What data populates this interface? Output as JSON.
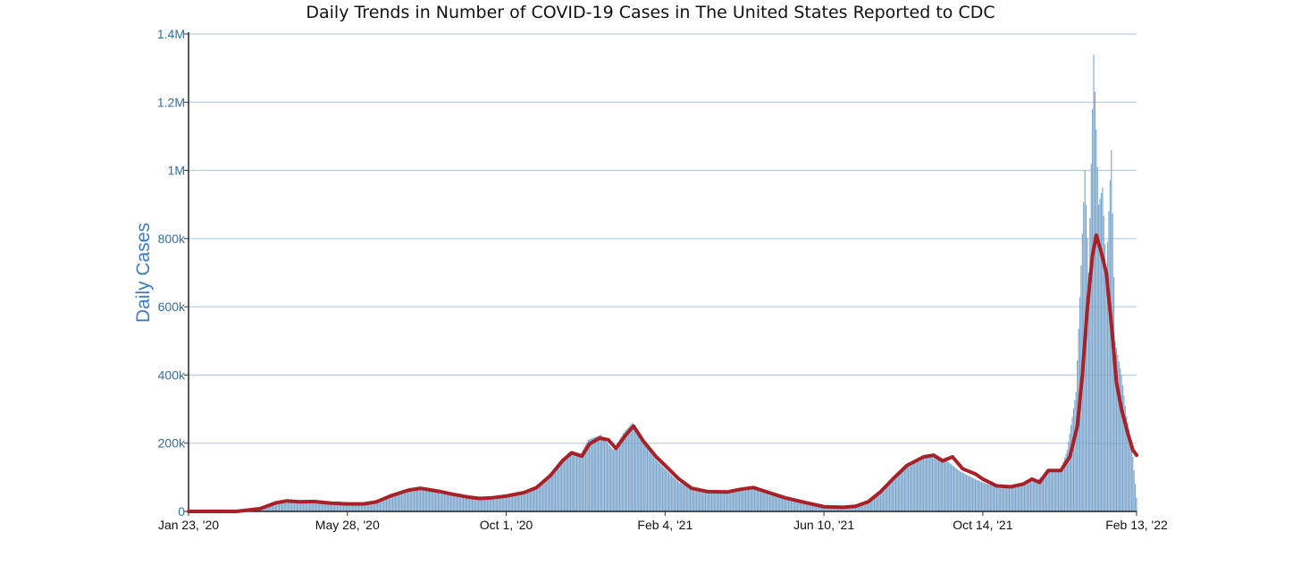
{
  "chart_data": {
    "type": "bar",
    "title": "Daily Trends in Number of COVID-19 Cases in The United States Reported to CDC",
    "xlabel": "",
    "ylabel": "Daily Cases",
    "ylim": [
      0,
      1400000
    ],
    "x_range": [
      "2020-01-23",
      "2022-02-13"
    ],
    "y_ticks": [
      {
        "value": 0,
        "label": "0"
      },
      {
        "value": 200000,
        "label": "200k"
      },
      {
        "value": 400000,
        "label": "400k"
      },
      {
        "value": 600000,
        "label": "600k"
      },
      {
        "value": 800000,
        "label": "800k"
      },
      {
        "value": 1000000,
        "label": "1M"
      },
      {
        "value": 1200000,
        "label": "1.2M"
      },
      {
        "value": 1400000,
        "label": "1.4M"
      }
    ],
    "x_ticks": [
      {
        "date": "2020-01-23",
        "label": "Jan 23, '20"
      },
      {
        "date": "2020-05-28",
        "label": "May 28, '20"
      },
      {
        "date": "2020-10-01",
        "label": "Oct 1, '20"
      },
      {
        "date": "2021-02-04",
        "label": "Feb 4, '21"
      },
      {
        "date": "2021-06-10",
        "label": "Jun 10, '21"
      },
      {
        "date": "2021-10-14",
        "label": "Oct 14, '21"
      },
      {
        "date": "2022-02-13",
        "label": "Feb 13, '22"
      }
    ],
    "grid": true,
    "legend": "none",
    "colors": {
      "bars": "#7ba6cc",
      "average_line": "#a82028",
      "grid": "#a9c6de",
      "ytick_text": "#2f6ea6",
      "ylabel_text": "#3f7bbf"
    },
    "series": [
      {
        "type": "bar",
        "description": "daily reported cases (approximate weekly values)",
        "points": [
          [
            "2020-01-23",
            0
          ],
          [
            "2020-02-20",
            0
          ],
          [
            "2020-03-10",
            1000
          ],
          [
            "2020-03-20",
            12000
          ],
          [
            "2020-04-01",
            27000
          ],
          [
            "2020-04-10",
            33000
          ],
          [
            "2020-04-20",
            28000
          ],
          [
            "2020-05-01",
            30000
          ],
          [
            "2020-05-15",
            25000
          ],
          [
            "2020-05-28",
            22000
          ],
          [
            "2020-06-10",
            22000
          ],
          [
            "2020-06-20",
            30000
          ],
          [
            "2020-07-01",
            45000
          ],
          [
            "2020-07-10",
            60000
          ],
          [
            "2020-07-20",
            68000
          ],
          [
            "2020-08-01",
            62000
          ],
          [
            "2020-08-10",
            55000
          ],
          [
            "2020-08-20",
            45000
          ],
          [
            "2020-09-01",
            40000
          ],
          [
            "2020-09-10",
            35000
          ],
          [
            "2020-09-20",
            42000
          ],
          [
            "2020-10-01",
            44000
          ],
          [
            "2020-10-10",
            52000
          ],
          [
            "2020-10-20",
            62000
          ],
          [
            "2020-11-01",
            85000
          ],
          [
            "2020-11-10",
            130000
          ],
          [
            "2020-11-20",
            175000
          ],
          [
            "2020-11-28",
            160000
          ],
          [
            "2020-12-05",
            210000
          ],
          [
            "2020-12-15",
            225000
          ],
          [
            "2020-12-25",
            180000
          ],
          [
            "2021-01-02",
            230000
          ],
          [
            "2021-01-09",
            260000
          ],
          [
            "2021-01-18",
            200000
          ],
          [
            "2021-01-28",
            150000
          ],
          [
            "2021-02-04",
            125000
          ],
          [
            "2021-02-15",
            85000
          ],
          [
            "2021-02-25",
            68000
          ],
          [
            "2021-03-10",
            58000
          ],
          [
            "2021-03-25",
            62000
          ],
          [
            "2021-04-05",
            68000
          ],
          [
            "2021-04-15",
            72000
          ],
          [
            "2021-04-25",
            58000
          ],
          [
            "2021-05-10",
            38000
          ],
          [
            "2021-05-25",
            25000
          ],
          [
            "2021-06-10",
            13000
          ],
          [
            "2021-06-25",
            11000
          ],
          [
            "2021-07-05",
            14000
          ],
          [
            "2021-07-15",
            30000
          ],
          [
            "2021-07-25",
            60000
          ],
          [
            "2021-08-05",
            105000
          ],
          [
            "2021-08-15",
            140000
          ],
          [
            "2021-08-28",
            160000
          ],
          [
            "2021-09-08",
            165000
          ],
          [
            "2021-09-15",
            150000
          ],
          [
            "2021-09-25",
            120000
          ],
          [
            "2021-10-05",
            100000
          ],
          [
            "2021-10-14",
            85000
          ],
          [
            "2021-10-25",
            72000
          ],
          [
            "2021-11-05",
            72000
          ],
          [
            "2021-11-15",
            85000
          ],
          [
            "2021-11-25",
            90000
          ],
          [
            "2021-12-05",
            115000
          ],
          [
            "2021-12-15",
            125000
          ],
          [
            "2021-12-20",
            180000
          ],
          [
            "2021-12-27",
            350000
          ],
          [
            "2022-01-03",
            1000000
          ],
          [
            "2022-01-06",
            700000
          ],
          [
            "2022-01-10",
            1340000
          ],
          [
            "2022-01-14",
            900000
          ],
          [
            "2022-01-17",
            950000
          ],
          [
            "2022-01-20",
            700000
          ],
          [
            "2022-01-24",
            1060000
          ],
          [
            "2022-01-27",
            500000
          ],
          [
            "2022-02-01",
            400000
          ],
          [
            "2022-02-05",
            280000
          ],
          [
            "2022-02-09",
            200000
          ],
          [
            "2022-02-13",
            40000
          ]
        ]
      },
      {
        "type": "line",
        "description": "7-day moving average",
        "points": [
          [
            "2020-01-23",
            0
          ],
          [
            "2020-03-01",
            0
          ],
          [
            "2020-03-20",
            8000
          ],
          [
            "2020-04-01",
            25000
          ],
          [
            "2020-04-10",
            31000
          ],
          [
            "2020-04-20",
            28000
          ],
          [
            "2020-05-01",
            29000
          ],
          [
            "2020-05-15",
            24000
          ],
          [
            "2020-05-28",
            22000
          ],
          [
            "2020-06-10",
            22000
          ],
          [
            "2020-06-20",
            28000
          ],
          [
            "2020-07-01",
            45000
          ],
          [
            "2020-07-15",
            62000
          ],
          [
            "2020-07-25",
            68000
          ],
          [
            "2020-08-10",
            58000
          ],
          [
            "2020-08-20",
            50000
          ],
          [
            "2020-09-01",
            42000
          ],
          [
            "2020-09-10",
            38000
          ],
          [
            "2020-09-20",
            40000
          ],
          [
            "2020-10-01",
            45000
          ],
          [
            "2020-10-15",
            55000
          ],
          [
            "2020-10-25",
            70000
          ],
          [
            "2020-11-05",
            105000
          ],
          [
            "2020-11-15",
            150000
          ],
          [
            "2020-11-22",
            172000
          ],
          [
            "2020-11-30",
            162000
          ],
          [
            "2020-12-06",
            198000
          ],
          [
            "2020-12-14",
            215000
          ],
          [
            "2020-12-21",
            210000
          ],
          [
            "2020-12-27",
            185000
          ],
          [
            "2021-01-04",
            225000
          ],
          [
            "2021-01-10",
            250000
          ],
          [
            "2021-01-18",
            205000
          ],
          [
            "2021-01-28",
            160000
          ],
          [
            "2021-02-04",
            135000
          ],
          [
            "2021-02-15",
            95000
          ],
          [
            "2021-02-25",
            68000
          ],
          [
            "2021-03-10",
            58000
          ],
          [
            "2021-03-25",
            57000
          ],
          [
            "2021-04-05",
            65000
          ],
          [
            "2021-04-15",
            70000
          ],
          [
            "2021-04-25",
            58000
          ],
          [
            "2021-05-10",
            40000
          ],
          [
            "2021-05-25",
            27000
          ],
          [
            "2021-06-10",
            14000
          ],
          [
            "2021-06-25",
            12000
          ],
          [
            "2021-07-05",
            15000
          ],
          [
            "2021-07-15",
            28000
          ],
          [
            "2021-07-25",
            58000
          ],
          [
            "2021-08-05",
            100000
          ],
          [
            "2021-08-15",
            135000
          ],
          [
            "2021-08-28",
            160000
          ],
          [
            "2021-09-05",
            165000
          ],
          [
            "2021-09-12",
            148000
          ],
          [
            "2021-09-20",
            160000
          ],
          [
            "2021-09-28",
            125000
          ],
          [
            "2021-10-08",
            110000
          ],
          [
            "2021-10-14",
            95000
          ],
          [
            "2021-10-25",
            75000
          ],
          [
            "2021-11-05",
            72000
          ],
          [
            "2021-11-15",
            80000
          ],
          [
            "2021-11-22",
            95000
          ],
          [
            "2021-11-28",
            85000
          ],
          [
            "2021-12-05",
            120000
          ],
          [
            "2021-12-15",
            120000
          ],
          [
            "2021-12-22",
            160000
          ],
          [
            "2021-12-28",
            250000
          ],
          [
            "2022-01-01",
            400000
          ],
          [
            "2022-01-05",
            600000
          ],
          [
            "2022-01-09",
            750000
          ],
          [
            "2022-01-12",
            810000
          ],
          [
            "2022-01-16",
            760000
          ],
          [
            "2022-01-20",
            700000
          ],
          [
            "2022-01-24",
            550000
          ],
          [
            "2022-01-28",
            380000
          ],
          [
            "2022-02-01",
            300000
          ],
          [
            "2022-02-06",
            230000
          ],
          [
            "2022-02-10",
            180000
          ],
          [
            "2022-02-13",
            165000
          ]
        ]
      }
    ]
  }
}
